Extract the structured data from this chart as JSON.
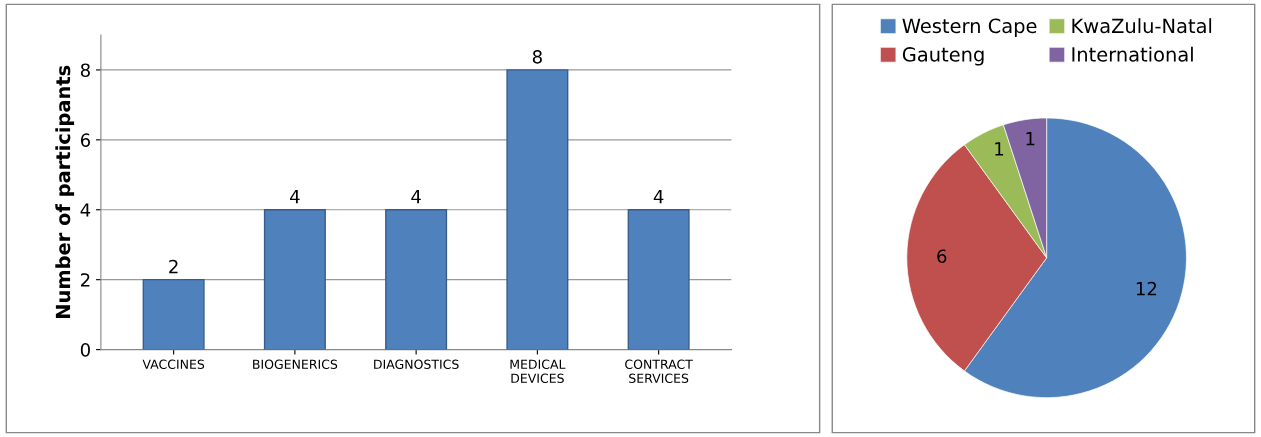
{
  "chart_data": [
    {
      "type": "bar",
      "ylabel": "Number of participants",
      "categories": [
        "VACCINES",
        "BIOGENERICS",
        "DIAGNOSTICS",
        "MEDICAL\nDEVICES",
        "CONTRACT\nSERVICES"
      ],
      "values": [
        2,
        4,
        4,
        8,
        4
      ],
      "color": "#4f81bd",
      "ylim": [
        0,
        9
      ],
      "yticks": [
        0,
        2,
        4,
        6,
        8
      ],
      "grid": "y",
      "data_labels": true
    },
    {
      "type": "pie",
      "categories": [
        "Western Cape",
        "Gauteng",
        "KwaZulu-Natal",
        "International"
      ],
      "values": [
        12,
        6,
        1,
        1
      ],
      "colors": [
        "#4f81bd",
        "#c0504d",
        "#9bbb59",
        "#8064a2"
      ],
      "legend": "top",
      "data_labels": true
    }
  ]
}
